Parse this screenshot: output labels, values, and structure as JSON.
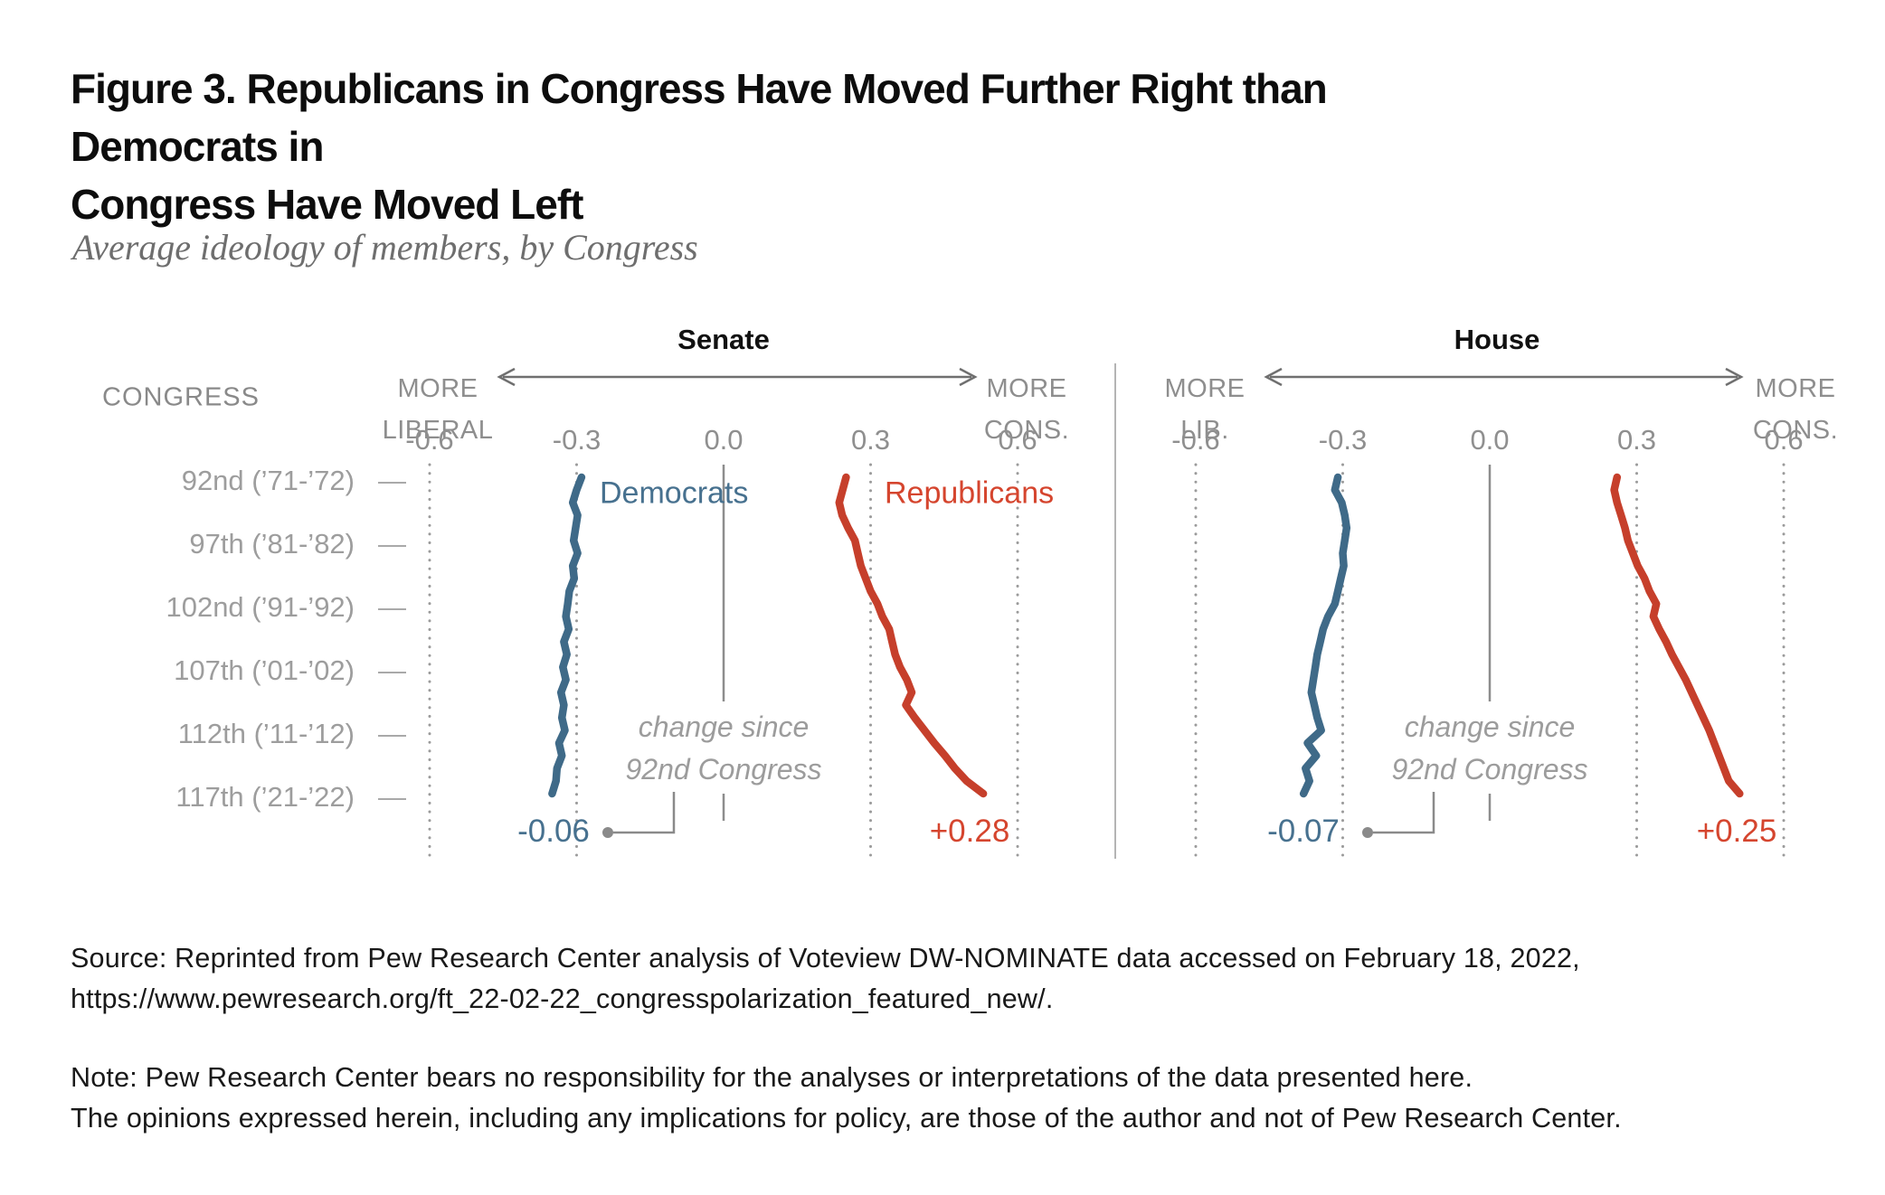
{
  "figure": {
    "title_line1": "Figure 3. Republicans in Congress Have Moved Further Right than Democrats in",
    "title_line2": "Congress Have Moved Left",
    "subtitle": "Average ideology of members, by Congress",
    "source_line1": "Source: Reprinted from Pew Research Center analysis of Voteview DW-NOMINATE data accessed on February 18, 2022,",
    "source_line2": "https://www.pewresearch.org/ft_22-02-22_congresspolarization_featured_new/.",
    "note_line1": "Note: Pew Research Center bears no responsibility for the analyses or interpretations of the data presented here.",
    "note_line2": "The opinions expressed herein, including any implications for policy, are those of the author and not of Pew Research Center."
  },
  "chart_data": {
    "type": "line",
    "title": "Average ideology of members, by Congress",
    "x_axis": {
      "ticks": [
        -0.6,
        -0.3,
        0,
        0.3,
        0.6
      ],
      "tick_labels": [
        "-0.6",
        "-0.3",
        "0.0",
        "0.3",
        "0.6"
      ],
      "range": [
        -0.75,
        0.75
      ]
    },
    "congress_axis": {
      "header": "CONGRESS",
      "row_labels": [
        "92nd (’71-’72)",
        "97th (’81-’82)",
        "102nd (’91-’92)",
        "107th (’01-’02)",
        "112th (’11-’12)",
        "117th (’21-’22)"
      ],
      "row_congresses": [
        92,
        97,
        102,
        107,
        112,
        117
      ],
      "row_tick_glyph": "—",
      "congress_range": [
        92,
        117
      ]
    },
    "panels": [
      {
        "title": "Senate",
        "left_label": [
          "MORE",
          "LIBERAL"
        ],
        "right_label": [
          "MORE",
          "CONS."
        ],
        "change_note": [
          "change since",
          "92nd Congress"
        ],
        "series": [
          {
            "name": "Democrats",
            "color": "#3F6A88",
            "label_color": "#47718F",
            "change_label": "-0.06",
            "start_value": -0.29,
            "end_value": -0.35,
            "values": [
              -0.29,
              -0.3,
              -0.308,
              -0.298,
              -0.302,
              -0.306,
              -0.298,
              -0.308,
              -0.305,
              -0.315,
              -0.318,
              -0.322,
              -0.316,
              -0.326,
              -0.32,
              -0.328,
              -0.322,
              -0.332,
              -0.326,
              -0.33,
              -0.324,
              -0.336,
              -0.33,
              -0.34,
              -0.342,
              -0.35
            ]
          },
          {
            "name": "Republicans",
            "color": "#C63F2B",
            "label_color": "#D5452E",
            "change_label": "+0.28",
            "start_value": 0.25,
            "end_value": 0.53,
            "values": [
              0.25,
              0.243,
              0.236,
              0.242,
              0.254,
              0.268,
              0.274,
              0.28,
              0.29,
              0.3,
              0.314,
              0.324,
              0.338,
              0.344,
              0.35,
              0.36,
              0.374,
              0.384,
              0.372,
              0.39,
              0.41,
              0.43,
              0.452,
              0.472,
              0.496,
              0.53
            ]
          }
        ]
      },
      {
        "title": "House",
        "left_label": [
          "MORE",
          "LIB."
        ],
        "right_label": [
          "MORE",
          "CONS."
        ],
        "change_note": [
          "change since",
          "92nd Congress"
        ],
        "series": [
          {
            "name": "Democrats",
            "color": "#3F6A88",
            "label_color": "#47718F",
            "change_label": "-0.07",
            "start_value": -0.31,
            "end_value": -0.38,
            "values": [
              -0.31,
              -0.316,
              -0.302,
              -0.296,
              -0.292,
              -0.296,
              -0.3,
              -0.298,
              -0.304,
              -0.31,
              -0.316,
              -0.33,
              -0.34,
              -0.346,
              -0.352,
              -0.356,
              -0.36,
              -0.364,
              -0.358,
              -0.352,
              -0.344,
              -0.372,
              -0.354,
              -0.376,
              -0.368,
              -0.38
            ]
          },
          {
            "name": "Republicans",
            "color": "#C63F2B",
            "label_color": "#D5452E",
            "change_label": "+0.25",
            "start_value": 0.26,
            "end_value": 0.51,
            "values": [
              0.26,
              0.254,
              0.26,
              0.268,
              0.276,
              0.282,
              0.292,
              0.302,
              0.316,
              0.326,
              0.34,
              0.334,
              0.346,
              0.36,
              0.372,
              0.386,
              0.4,
              0.412,
              0.424,
              0.436,
              0.448,
              0.458,
              0.468,
              0.478,
              0.488,
              0.51
            ]
          }
        ]
      }
    ],
    "style": {
      "grid_dot_color": "#9B9B9B",
      "zero_line_color": "#8D8D8D",
      "arrow_color": "#6F6F6F",
      "callout_color": "#8A8A8A",
      "separator_color": "#B4B4B4"
    }
  }
}
